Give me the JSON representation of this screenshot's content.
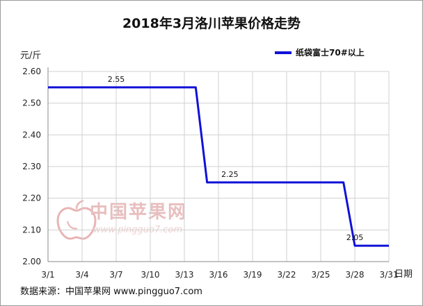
{
  "title": "2018年3月洛川苹果价格走势",
  "y_unit": "元/斤",
  "x_unit": "日期",
  "source": "数据来源：中国苹果网 www.pingguo7.com",
  "watermark": {
    "name": "中国苹果网",
    "url": "www.pingguo7.com",
    "icon": "apple-logo-icon"
  },
  "colors": {
    "series": "#1010d8",
    "grid": "#d0d0d0",
    "axis": "#8a8a8a",
    "watermark": "#e4b3b3"
  },
  "chart_data": {
    "type": "line",
    "title": "2018年3月洛川苹果价格走势",
    "xlabel": "日期",
    "ylabel": "元/斤",
    "x_ticks": [
      "3/1",
      "3/4",
      "3/7",
      "3/10",
      "3/13",
      "3/16",
      "3/19",
      "3/22",
      "3/25",
      "3/28",
      "3/31"
    ],
    "y_ticks": [
      "2.00",
      "2.10",
      "2.20",
      "2.30",
      "2.40",
      "2.50",
      "2.60"
    ],
    "ylim": [
      2.0,
      2.6
    ],
    "grid": true,
    "legend_position": "top-right",
    "series": [
      {
        "name": "纸袋富士70#以上",
        "x": [
          "3/1",
          "3/2",
          "3/3",
          "3/4",
          "3/5",
          "3/6",
          "3/7",
          "3/8",
          "3/9",
          "3/10",
          "3/11",
          "3/12",
          "3/13",
          "3/14",
          "3/15",
          "3/16",
          "3/17",
          "3/18",
          "3/19",
          "3/20",
          "3/21",
          "3/22",
          "3/23",
          "3/24",
          "3/25",
          "3/26",
          "3/27",
          "3/28",
          "3/29",
          "3/30",
          "3/31"
        ],
        "y": [
          2.55,
          2.55,
          2.55,
          2.55,
          2.55,
          2.55,
          2.55,
          2.55,
          2.55,
          2.55,
          2.55,
          2.55,
          2.55,
          2.55,
          2.25,
          2.25,
          2.25,
          2.25,
          2.25,
          2.25,
          2.25,
          2.25,
          2.25,
          2.25,
          2.25,
          2.25,
          2.25,
          2.05,
          2.05,
          2.05,
          2.05
        ]
      }
    ],
    "data_labels": [
      {
        "x": "3/7",
        "text": "2.55"
      },
      {
        "x": "3/17",
        "text": "2.25"
      },
      {
        "x": "3/28",
        "text": "2.05"
      }
    ]
  }
}
